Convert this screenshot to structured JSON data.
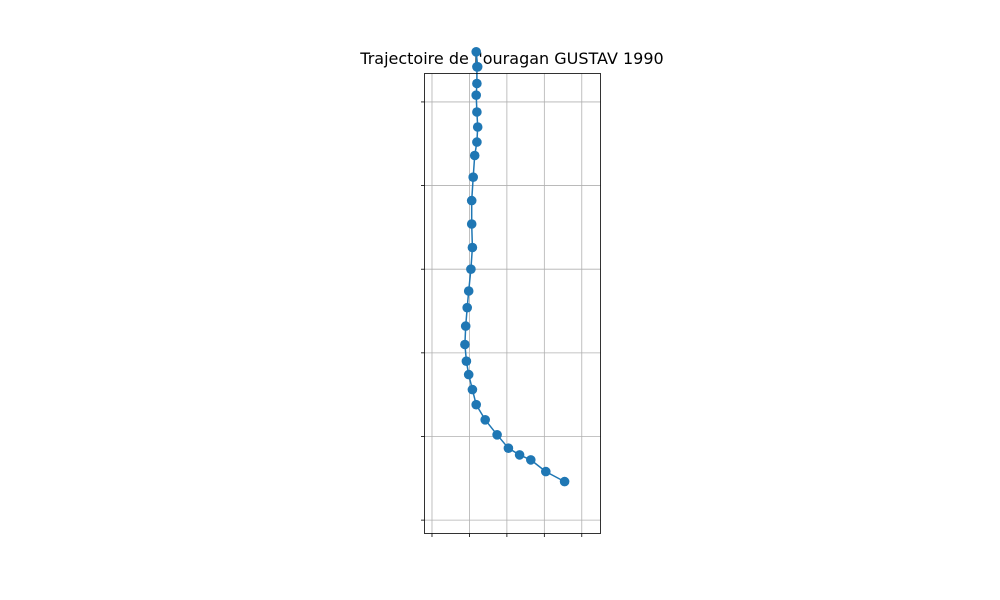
{
  "chart_data": {
    "type": "line",
    "title": "Trajectoire de l'ouragan GUSTAV 1990",
    "xlabel": "",
    "ylabel": "",
    "grid": true,
    "marker": "circle",
    "color": "#1f77b4",
    "xlim": [
      -47.5,
      -24.0
    ],
    "ylim": [
      10.7,
      38.2
    ],
    "x_gridlines": [
      -46.5,
      -41.5,
      -36.5,
      -31.5,
      -26.5
    ],
    "y_gridlines": [
      11.5,
      16.5,
      21.5,
      26.5,
      31.5,
      36.5
    ],
    "series": [
      {
        "x": [
          -28.8,
          -31.3,
          -33.3,
          -34.8,
          -36.3,
          -37.8,
          -39.4,
          -40.6,
          -41.1,
          -41.6,
          -41.9,
          -42.1,
          -42.0,
          -41.8,
          -41.6,
          -41.3,
          -41.1,
          -41.2,
          -41.2,
          -41.0,
          -40.8,
          -40.5,
          -40.4,
          -40.5,
          -40.6,
          -40.5,
          -40.5,
          -40.6,
          -40.4
        ],
        "y": [
          13.8,
          14.4,
          15.1,
          15.4,
          15.8,
          16.6,
          17.5,
          18.4,
          19.3,
          20.2,
          21.0,
          22.0,
          23.1,
          24.2,
          25.2,
          26.5,
          27.8,
          29.2,
          30.6,
          32.0,
          33.3,
          34.1,
          35.0,
          35.9,
          36.9,
          37.6,
          38.6,
          39.5,
          38.6
        ]
      }
    ]
  }
}
